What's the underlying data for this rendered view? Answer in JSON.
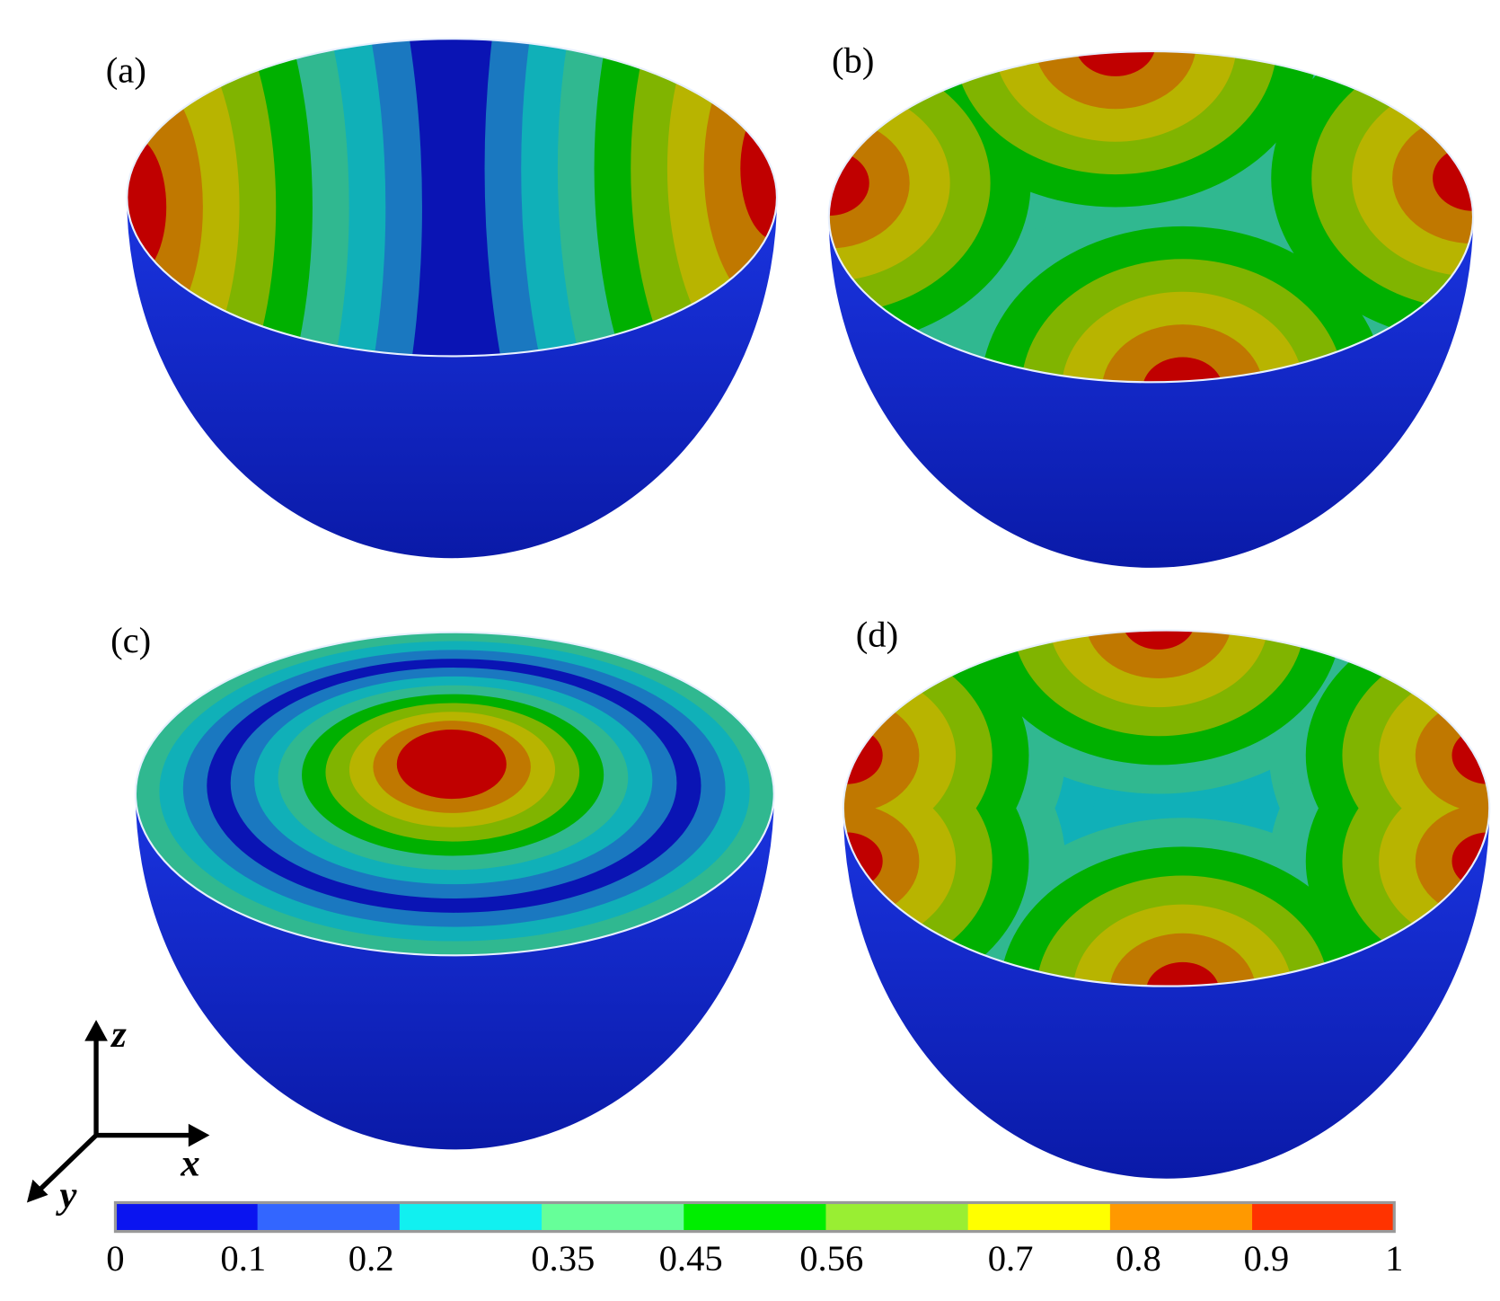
{
  "panels": [
    {
      "label": "(a)"
    },
    {
      "label": "(b)"
    },
    {
      "label": "(c)"
    },
    {
      "label": "(d)"
    }
  ],
  "axes": {
    "z": "z",
    "x": "x",
    "y": "y"
  },
  "colorbar": {
    "range": [
      0,
      1
    ],
    "colors": [
      "#0a14f0",
      "#3366ff",
      "#11f0f0",
      "#66ff99",
      "#00ee00",
      "#99ee33",
      "#ffff00",
      "#ff9900",
      "#ff3300"
    ],
    "ticks": [
      0,
      0.1,
      0.2,
      0.35,
      0.45,
      0.56,
      0.7,
      0.8,
      0.9,
      1
    ]
  }
}
